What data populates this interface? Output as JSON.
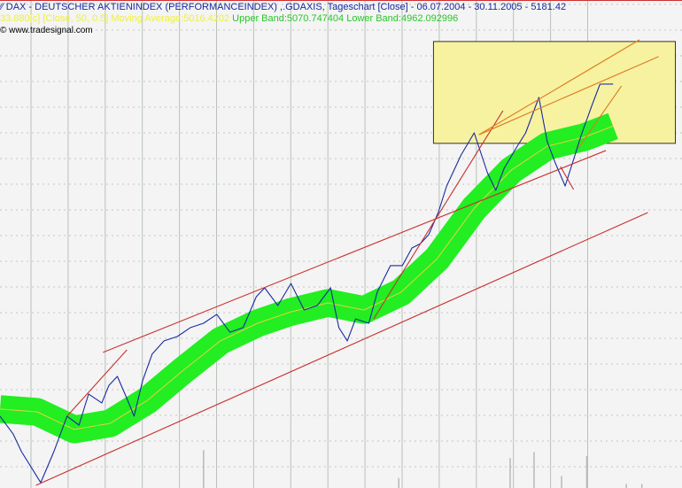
{
  "header": {
    "title": "DAX  - DEUTSCHER AKTIENINDEX (PERFORMANCEINDEX) ,.GDAXIS, Tageschart [Close] - 06.07.2004 - 30.11.2005 - 5181.42",
    "indicator_ma": "33.880[c] [Close, 50, 0.5] Moving Average:5016.4202",
    "indicator_bands": "Upper Band:5070.747404 Lower Band:4962.092996",
    "copyright": "© www.tradesignal.com",
    "chart-icon": "line-chart-icon"
  },
  "chart_data": {
    "type": "line",
    "title": "DAX  - DEUTSCHER AKTIENINDEX (PERFORMANCEINDEX) ,.GDAXIS, Tageschart [Close] - 06.07.2004 - 30.11.2005 - 5181.42",
    "x_range": [
      "2004-07-06",
      "2005-11-30"
    ],
    "last_close": 5181.42,
    "grid": true,
    "colors": {
      "price": "#1a2aa0",
      "band": "#22ee22",
      "ma": "#e8d040",
      "trend": "#c83030",
      "trend_recent": "#e07820",
      "highlight": "#f6f2a0",
      "volume": "#b8b8b8"
    },
    "series": [
      {
        "name": "DAX",
        "points": [
          [
            "2004-07-06",
            3880
          ],
          [
            "2004-07-17",
            3810
          ],
          [
            "2004-07-24",
            3741
          ],
          [
            "2004-08-09",
            3620
          ],
          [
            "2004-08-20",
            3741
          ],
          [
            "2004-08-31",
            3880
          ],
          [
            "2004-09-10",
            3845
          ],
          [
            "2004-09-18",
            3967
          ],
          [
            "2004-09-29",
            3932
          ],
          [
            "2004-10-05",
            4001
          ],
          [
            "2004-10-12",
            4036
          ],
          [
            "2004-10-20",
            3949
          ],
          [
            "2004-10-26",
            3880
          ],
          [
            "2004-11-02",
            4018
          ],
          [
            "2004-11-10",
            4123
          ],
          [
            "2004-11-20",
            4175
          ],
          [
            "2004-12-01",
            4192
          ],
          [
            "2004-12-12",
            4227
          ],
          [
            "2004-12-23",
            4244
          ],
          [
            "2005-01-03",
            4279
          ],
          [
            "2005-01-14",
            4209
          ],
          [
            "2005-01-25",
            4227
          ],
          [
            "2005-02-05",
            4348
          ],
          [
            "2005-02-12",
            4383
          ],
          [
            "2005-02-23",
            4314
          ],
          [
            "2005-03-06",
            4400
          ],
          [
            "2005-03-17",
            4296
          ],
          [
            "2005-03-28",
            4314
          ],
          [
            "2005-04-08",
            4383
          ],
          [
            "2005-04-15",
            4227
          ],
          [
            "2005-04-22",
            4175
          ],
          [
            "2005-04-29",
            4261
          ],
          [
            "2005-05-10",
            4244
          ],
          [
            "2005-05-17",
            4366
          ],
          [
            "2005-05-28",
            4470
          ],
          [
            "2005-06-07",
            4470
          ],
          [
            "2005-06-15",
            4539
          ],
          [
            "2005-06-22",
            4556
          ],
          [
            "2005-06-29",
            4591
          ],
          [
            "2005-07-07",
            4678
          ],
          [
            "2005-07-14",
            4782
          ],
          [
            "2005-07-26",
            4903
          ],
          [
            "2005-08-06",
            4990
          ],
          [
            "2005-08-17",
            4834
          ],
          [
            "2005-08-24",
            4765
          ],
          [
            "2005-08-31",
            4851
          ],
          [
            "2005-09-11",
            4938
          ],
          [
            "2005-09-18",
            4990
          ],
          [
            "2005-09-29",
            5129
          ],
          [
            "2005-10-06",
            4955
          ],
          [
            "2005-10-13",
            4869
          ],
          [
            "2005-10-21",
            4782
          ],
          [
            "2005-10-28",
            4886
          ],
          [
            "2005-11-04",
            4990
          ],
          [
            "2005-11-12",
            5094
          ],
          [
            "2005-11-19",
            5181
          ],
          [
            "2005-11-30",
            5181.42
          ]
        ]
      },
      {
        "name": "Moving Average",
        "band_width": 54.33,
        "points": [
          [
            "2004-07-06",
            3908
          ],
          [
            "2004-08-06",
            3897
          ],
          [
            "2004-09-06",
            3828
          ],
          [
            "2004-10-06",
            3852
          ],
          [
            "2004-11-06",
            3942
          ],
          [
            "2004-12-06",
            4060
          ],
          [
            "2005-01-06",
            4175
          ],
          [
            "2005-02-06",
            4244
          ],
          [
            "2005-03-06",
            4289
          ],
          [
            "2005-04-06",
            4324
          ],
          [
            "2005-05-06",
            4296
          ],
          [
            "2005-06-06",
            4366
          ],
          [
            "2005-07-06",
            4497
          ],
          [
            "2005-08-06",
            4695
          ],
          [
            "2005-09-06",
            4844
          ],
          [
            "2005-10-06",
            4938
          ],
          [
            "2005-11-06",
            4973
          ],
          [
            "2005-11-30",
            5016.42
          ]
        ]
      }
    ],
    "trend_lines": [
      {
        "kind": "trend",
        "from": [
          "2004-08-05",
          3609
        ],
        "to": [
          "2005-12-29",
          4678
        ]
      },
      {
        "kind": "trend",
        "from": [
          "2004-09-30",
          4130
        ],
        "to": [
          "2005-11-24",
          4921
        ]
      },
      {
        "kind": "trend",
        "from": [
          "2004-08-31",
          3880
        ],
        "to": [
          "2004-10-20",
          4140
        ]
      },
      {
        "kind": "trend",
        "from": [
          "2005-05-14",
          4261
        ],
        "to": [
          "2005-08-30",
          5077
        ]
      },
      {
        "kind": "trend",
        "from": [
          "2005-10-17",
          4858
        ],
        "to": [
          "2005-10-28",
          4768
        ]
      },
      {
        "kind": "recent",
        "from": [
          "2005-08-10",
          4983
        ],
        "to": [
          "2005-12-22",
          5355
        ]
      },
      {
        "kind": "recent",
        "from": [
          "2005-08-10",
          4983
        ],
        "to": [
          "2006-01-07",
          5289
        ]
      },
      {
        "kind": "recent",
        "from": [
          "2005-11-01",
          4931
        ],
        "to": [
          "2005-12-07",
          5174
        ]
      }
    ],
    "highlight_box": {
      "from": [
        "2005-07-03",
        5348
      ],
      "to": [
        "2006-01-21",
        4949
      ]
    },
    "volume_spikes_relative": [
      [
        "2004-12-23",
        0.95
      ],
      [
        "2005-06-04",
        0.25
      ],
      [
        "2005-09-05",
        0.75
      ],
      [
        "2005-09-25",
        0.9
      ],
      [
        "2005-10-18",
        0.3
      ],
      [
        "2005-11-08",
        0.8
      ],
      [
        "2005-12-11",
        0.1
      ],
      [
        "2005-12-24",
        0.1
      ]
    ]
  }
}
